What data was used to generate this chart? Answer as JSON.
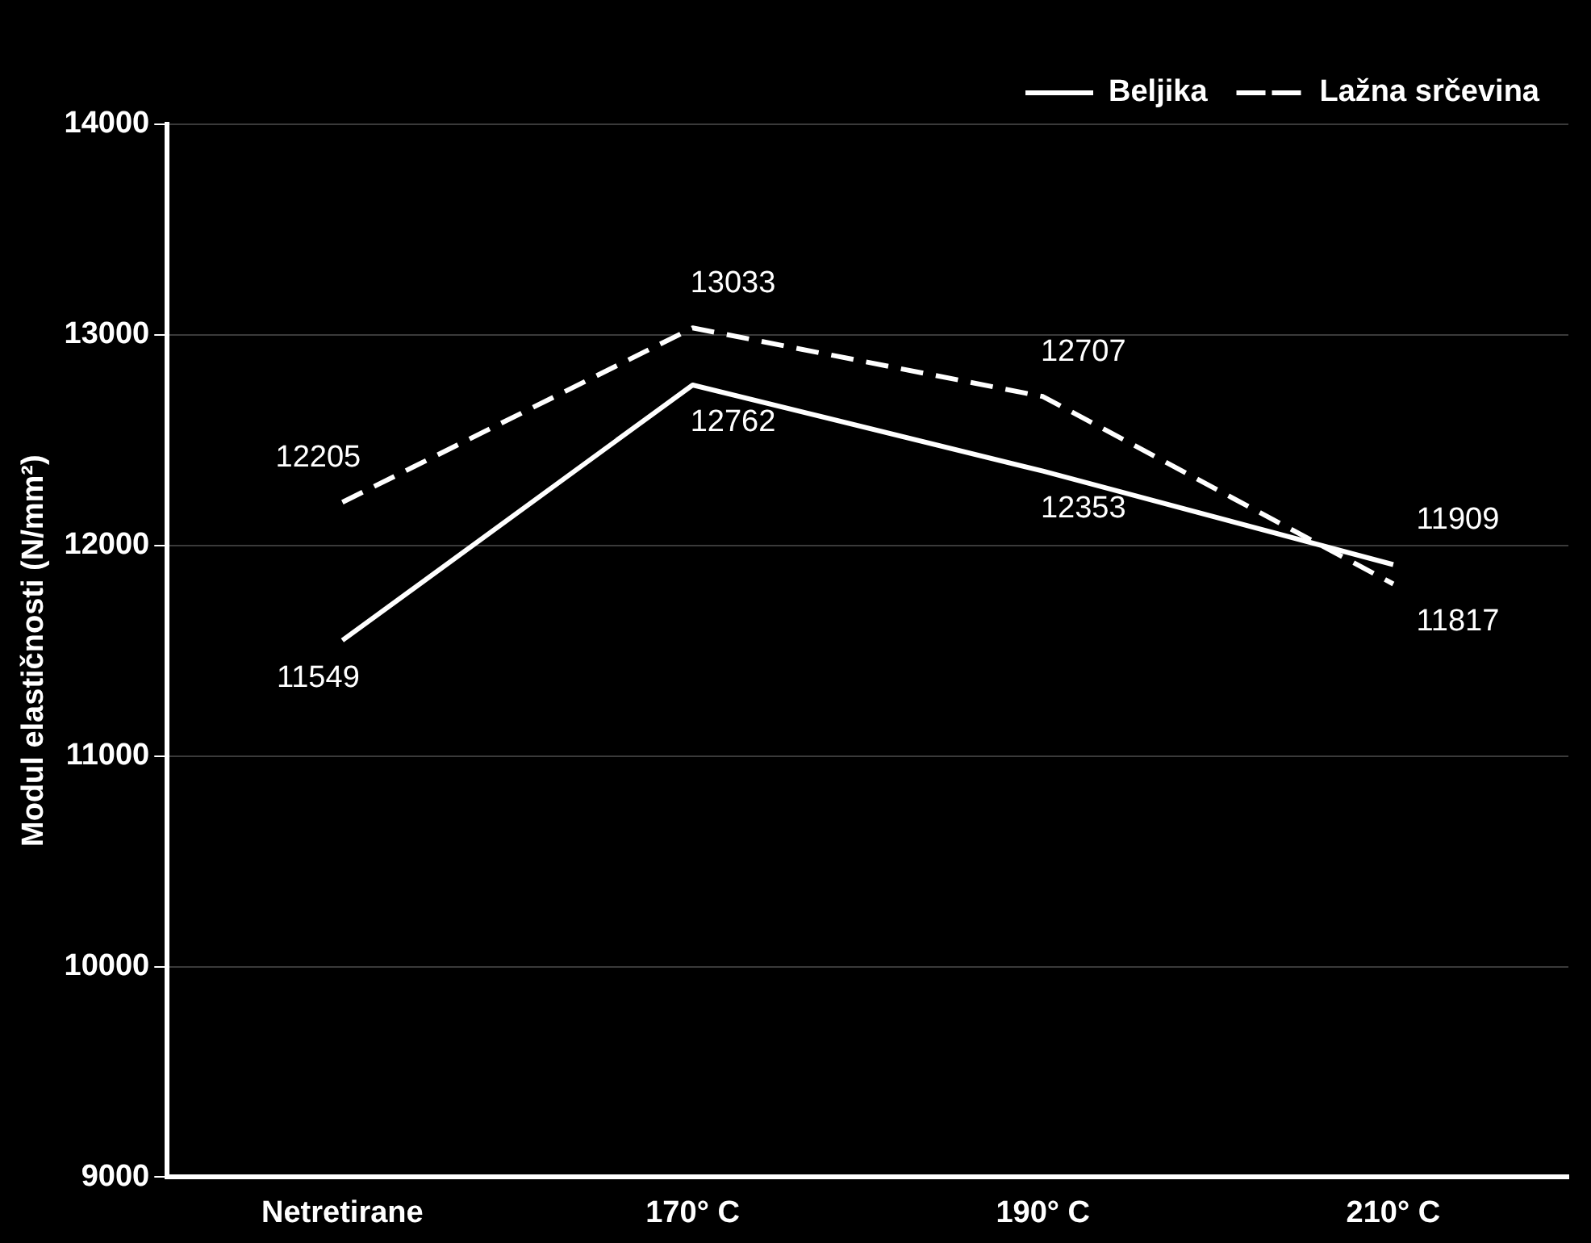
{
  "chart_data": {
    "type": "line",
    "ylabel": "Modul elastičnosti (N/mm²)",
    "categories": [
      "Netretirane",
      "170° C",
      "190° C",
      "210° C"
    ],
    "series": [
      {
        "name": "Beljika",
        "color": "#ffffff",
        "line_style": "solid",
        "values": [
          11549,
          12762,
          12353,
          11909
        ]
      },
      {
        "name": "Lažna srčevina",
        "color": "#ffffff",
        "line_style": "dashed",
        "values": [
          12205,
          13033,
          12707,
          11817
        ]
      }
    ],
    "ylim": [
      9000,
      14000
    ],
    "yticks": [
      9000,
      10000,
      11000,
      12000,
      13000,
      14000
    ],
    "grid": "y",
    "legend": "top right",
    "marker": "none",
    "data_labels": true
  }
}
